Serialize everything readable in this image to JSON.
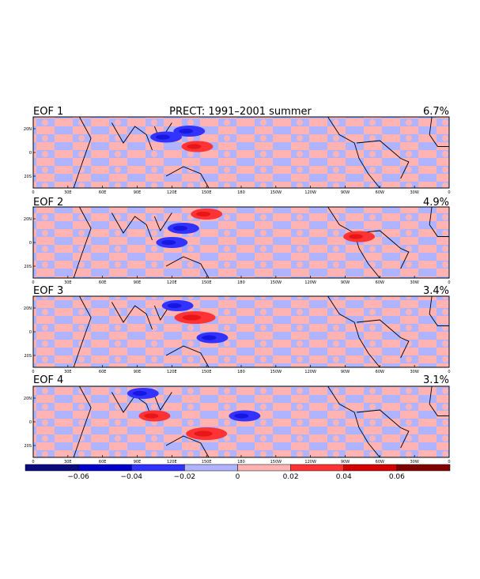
{
  "chart_data": {
    "type": "heatmap",
    "title": "PRECT: 1991–2001 summer",
    "x_ticks": [
      "0",
      "30E",
      "60E",
      "90E",
      "120E",
      "150E",
      "180",
      "150W",
      "120W",
      "90W",
      "60W",
      "30W",
      "0"
    ],
    "y_ticks": [
      "20N",
      "0",
      "20S"
    ],
    "panels": [
      {
        "label": "EOF 1",
        "variance": "6.7%",
        "features": [
          {
            "lon": 135,
            "lat": 18,
            "value": -0.03
          },
          {
            "lon": 142,
            "lat": 5,
            "value": 0.03
          },
          {
            "lon": 115,
            "lat": 13,
            "value": -0.03
          }
        ]
      },
      {
        "label": "EOF 2",
        "variance": "4.9%",
        "features": [
          {
            "lon": 130,
            "lat": 12,
            "value": -0.03
          },
          {
            "lon": 150,
            "lat": 24,
            "value": 0.03
          },
          {
            "lon": 120,
            "lat": 0,
            "value": -0.03
          },
          {
            "lon": 282,
            "lat": 5,
            "value": 0.03
          }
        ]
      },
      {
        "label": "EOF 3",
        "variance": "3.4%",
        "features": [
          {
            "lon": 125,
            "lat": 22,
            "value": -0.03
          },
          {
            "lon": 140,
            "lat": 12,
            "value": 0.05
          },
          {
            "lon": 155,
            "lat": -5,
            "value": -0.03
          }
        ]
      },
      {
        "label": "EOF 4",
        "variance": "3.1%",
        "features": [
          {
            "lon": 105,
            "lat": 5,
            "value": 0.03
          },
          {
            "lon": 150,
            "lat": -10,
            "value": 0.04
          },
          {
            "lon": 183,
            "lat": 5,
            "value": -0.03
          },
          {
            "lon": 95,
            "lat": 24,
            "value": -0.03
          }
        ]
      }
    ],
    "colorbar": {
      "colors": [
        "#0a0a7e",
        "#0000c8",
        "#3333ff",
        "#b0b3ff",
        "#ffb3b3",
        "#ff3333",
        "#d40000",
        "#800000"
      ],
      "labels": [
        "−0.06",
        "−0.04",
        "−0.02",
        "0",
        "0.02",
        "0.04",
        "0.06"
      ]
    },
    "field_colors": {
      "neg_weak": "#b0b3ff",
      "pos_weak": "#ffb3b3",
      "neg_strong": "#3333ff",
      "pos_strong": "#ff3333",
      "neg_core": "#0000c8",
      "pos_core": "#d40000"
    }
  }
}
